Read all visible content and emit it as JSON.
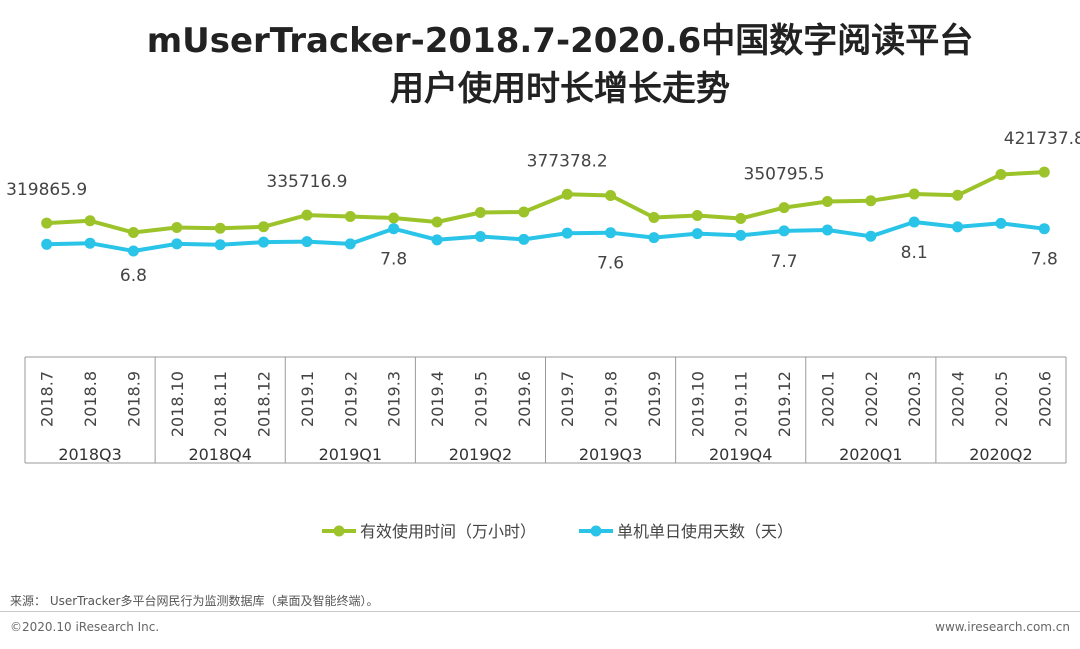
{
  "title_line1": "mUserTracker-2018.7-2020.6中国数字阅读平台",
  "title_line2": "用户使用时长增长走势",
  "chart_data": {
    "type": "line",
    "title": "mUserTracker-2018.7-2020.6中国数字阅读平台用户使用时长增长走势",
    "categories": [
      "2018.7",
      "2018.8",
      "2018.9",
      "2018.10",
      "2018.11",
      "2018.12",
      "2019.1",
      "2019.2",
      "2019.3",
      "2019.4",
      "2019.5",
      "2019.6",
      "2019.7",
      "2019.8",
      "2019.9",
      "2019.10",
      "2019.11",
      "2019.12",
      "2020.1",
      "2020.2",
      "2020.3",
      "2020.4",
      "2020.5",
      "2020.6"
    ],
    "quarters": [
      {
        "label": "2018Q3",
        "months": 3
      },
      {
        "label": "2018Q4",
        "months": 3
      },
      {
        "label": "2019Q1",
        "months": 3
      },
      {
        "label": "2019Q2",
        "months": 3
      },
      {
        "label": "2019Q3",
        "months": 3
      },
      {
        "label": "2019Q4",
        "months": 3
      },
      {
        "label": "2020Q1",
        "months": 3
      },
      {
        "label": "2020Q2",
        "months": 3
      }
    ],
    "series": [
      {
        "name": "有效使用时间（万小时）",
        "color": "#9dc32a",
        "values": [
          319865.9,
          324500,
          301000,
          311000,
          309500,
          312500,
          335716.9,
          333000,
          330000,
          322000,
          341000,
          342000,
          377378.2,
          375000,
          331000,
          335000,
          329000,
          350795.5,
          363000,
          364500,
          378000,
          375500,
          417000,
          421737.8
        ],
        "labels": [
          {
            "index": 0,
            "text": "319865.9"
          },
          {
            "index": 6,
            "text": "335716.9"
          },
          {
            "index": 12,
            "text": "377378.2"
          },
          {
            "index": 17,
            "text": "350795.5"
          },
          {
            "index": 23,
            "text": "421737.8"
          }
        ]
      },
      {
        "name": "单机单日使用天数（天）",
        "color": "#29c4e8",
        "values": [
          7.1,
          7.15,
          6.8,
          7.12,
          7.08,
          7.2,
          7.22,
          7.12,
          7.8,
          7.3,
          7.45,
          7.32,
          7.6,
          7.62,
          7.4,
          7.58,
          7.5,
          7.7,
          7.74,
          7.46,
          8.1,
          7.88,
          8.04,
          7.8
        ],
        "labels": [
          {
            "index": 2,
            "text": "6.8"
          },
          {
            "index": 8,
            "text": "7.8"
          },
          {
            "index": 13,
            "text": "7.6"
          },
          {
            "index": 17,
            "text": "7.7"
          },
          {
            "index": 20,
            "text": "8.1"
          },
          {
            "index": 23,
            "text": "7.8"
          }
        ]
      }
    ],
    "legend_position": "bottom-center",
    "grid": false
  },
  "footer": {
    "source": "来源： UserTracker多平台网民行为监测数据库（桌面及智能终端）。",
    "copyright": "©2020.10 iResearch Inc.",
    "website": "www.iresearch.com.cn"
  }
}
